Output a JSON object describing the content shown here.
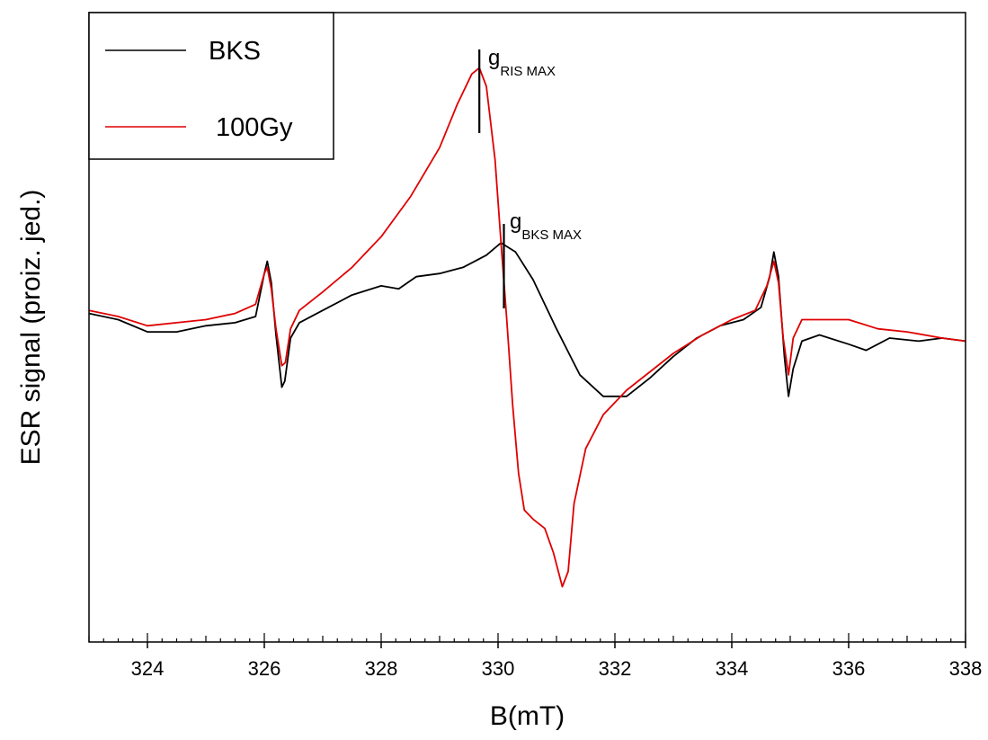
{
  "chart_data": {
    "type": "line",
    "xlabel": "B(mT)",
    "ylabel": "ESR signal (proiz. jed.)",
    "xlim": [
      323,
      338
    ],
    "ylim": [
      -1.05,
      1.0
    ],
    "x_ticks": [
      "324",
      "326",
      "328",
      "330",
      "332",
      "334",
      "336",
      "338"
    ],
    "x_tick_values": [
      324,
      326,
      328,
      330,
      332,
      334,
      336,
      338
    ],
    "y_tick_labels": false,
    "legend": {
      "placement": "top-left",
      "entries": [
        {
          "label": "BKS",
          "color": "#000000"
        },
        {
          "label": "100Gy",
          "color": "#e00000"
        }
      ]
    },
    "annotations": [
      {
        "main": "g",
        "sub": "RIS MAX",
        "x": 329.68
      },
      {
        "main": "g",
        "sub": "BKS MAX",
        "x": 330.1
      }
    ],
    "series": [
      {
        "color": "#000000",
        "points": [
          [
            323.0,
            0.02
          ],
          [
            323.5,
            0.0
          ],
          [
            324.0,
            -0.04
          ],
          [
            324.5,
            -0.04
          ],
          [
            325.0,
            -0.02
          ],
          [
            325.5,
            -0.01
          ],
          [
            325.85,
            0.01
          ],
          [
            326.0,
            0.15
          ],
          [
            326.05,
            0.19
          ],
          [
            326.12,
            0.12
          ],
          [
            326.2,
            -0.05
          ],
          [
            326.3,
            -0.22
          ],
          [
            326.35,
            -0.2
          ],
          [
            326.45,
            -0.06
          ],
          [
            326.6,
            -0.01
          ],
          [
            327.0,
            0.03
          ],
          [
            327.5,
            0.08
          ],
          [
            328.0,
            0.11
          ],
          [
            328.3,
            0.1
          ],
          [
            328.6,
            0.14
          ],
          [
            329.0,
            0.15
          ],
          [
            329.4,
            0.17
          ],
          [
            329.8,
            0.21
          ],
          [
            330.05,
            0.25
          ],
          [
            330.3,
            0.22
          ],
          [
            330.6,
            0.13
          ],
          [
            331.0,
            -0.03
          ],
          [
            331.4,
            -0.18
          ],
          [
            331.8,
            -0.25
          ],
          [
            332.2,
            -0.25
          ],
          [
            332.6,
            -0.19
          ],
          [
            333.0,
            -0.12
          ],
          [
            333.4,
            -0.06
          ],
          [
            333.8,
            -0.02
          ],
          [
            334.2,
            0.0
          ],
          [
            334.5,
            0.04
          ],
          [
            334.65,
            0.14
          ],
          [
            334.72,
            0.22
          ],
          [
            334.8,
            0.14
          ],
          [
            334.9,
            -0.12
          ],
          [
            334.97,
            -0.25
          ],
          [
            335.05,
            -0.16
          ],
          [
            335.2,
            -0.07
          ],
          [
            335.5,
            -0.05
          ],
          [
            336.0,
            -0.08
          ],
          [
            336.3,
            -0.1
          ],
          [
            336.7,
            -0.06
          ],
          [
            337.2,
            -0.07
          ],
          [
            337.6,
            -0.06
          ],
          [
            338.0,
            -0.07
          ]
        ]
      },
      {
        "color": "#e00000",
        "points": [
          [
            323.0,
            0.03
          ],
          [
            323.5,
            0.01
          ],
          [
            324.0,
            -0.02
          ],
          [
            324.5,
            -0.01
          ],
          [
            325.0,
            0.0
          ],
          [
            325.5,
            0.02
          ],
          [
            325.85,
            0.05
          ],
          [
            326.0,
            0.15
          ],
          [
            326.05,
            0.17
          ],
          [
            326.12,
            0.1
          ],
          [
            326.2,
            -0.03
          ],
          [
            326.3,
            -0.15
          ],
          [
            326.36,
            -0.14
          ],
          [
            326.45,
            -0.03
          ],
          [
            326.6,
            0.03
          ],
          [
            327.0,
            0.09
          ],
          [
            327.5,
            0.17
          ],
          [
            328.0,
            0.27
          ],
          [
            328.5,
            0.4
          ],
          [
            329.0,
            0.56
          ],
          [
            329.3,
            0.7
          ],
          [
            329.55,
            0.8
          ],
          [
            329.68,
            0.82
          ],
          [
            329.8,
            0.76
          ],
          [
            329.95,
            0.52
          ],
          [
            330.05,
            0.25
          ],
          [
            330.15,
            0.0
          ],
          [
            330.25,
            -0.28
          ],
          [
            330.35,
            -0.5
          ],
          [
            330.45,
            -0.62
          ],
          [
            330.6,
            -0.65
          ],
          [
            330.8,
            -0.68
          ],
          [
            330.95,
            -0.76
          ],
          [
            331.1,
            -0.87
          ],
          [
            331.2,
            -0.82
          ],
          [
            331.3,
            -0.6
          ],
          [
            331.5,
            -0.42
          ],
          [
            331.8,
            -0.31
          ],
          [
            332.2,
            -0.23
          ],
          [
            332.6,
            -0.17
          ],
          [
            333.0,
            -0.11
          ],
          [
            333.5,
            -0.05
          ],
          [
            334.0,
            0.0
          ],
          [
            334.4,
            0.03
          ],
          [
            334.6,
            0.11
          ],
          [
            334.72,
            0.19
          ],
          [
            334.8,
            0.12
          ],
          [
            334.88,
            -0.06
          ],
          [
            334.97,
            -0.18
          ],
          [
            335.05,
            -0.06
          ],
          [
            335.2,
            0.0
          ],
          [
            335.6,
            0.0
          ],
          [
            336.0,
            0.0
          ],
          [
            336.5,
            -0.03
          ],
          [
            337.0,
            -0.04
          ],
          [
            337.6,
            -0.06
          ],
          [
            338.0,
            -0.07
          ]
        ]
      }
    ]
  }
}
